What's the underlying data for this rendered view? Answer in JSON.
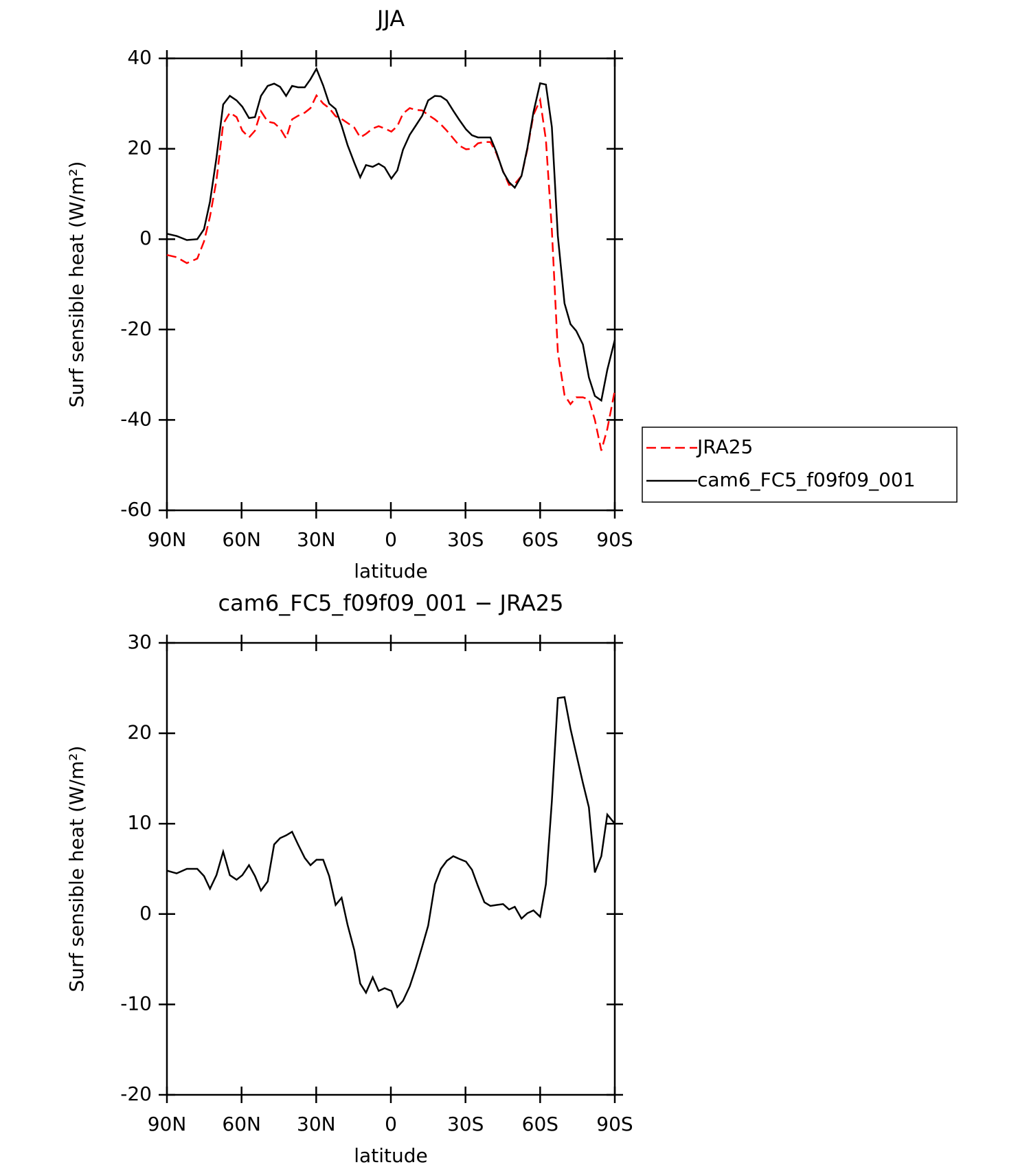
{
  "chart_data": [
    {
      "type": "line",
      "title": "JJA",
      "x_label": "latitude",
      "y_label": "Surf sensible heat (W/m²)",
      "xlim": [
        90,
        -90
      ],
      "ylim": [
        -60,
        40
      ],
      "xticks": [
        {
          "value": 90,
          "label": "90N"
        },
        {
          "value": 60,
          "label": "60N"
        },
        {
          "value": 30,
          "label": "30N"
        },
        0,
        {
          "value": -30,
          "label": "30S"
        },
        {
          "value": -60,
          "label": "60S"
        },
        {
          "value": -90,
          "label": "90S"
        }
      ],
      "yticks": [
        -60,
        -40,
        -20,
        0,
        20,
        40
      ],
      "legend": "right",
      "x": [
        90,
        86.1,
        82,
        77.8,
        75.1,
        72.7,
        70.1,
        67.4,
        64.7,
        62,
        59.7,
        57,
        54.6,
        52.2,
        49.5,
        46.9,
        44.5,
        42.1,
        39.7,
        37.3,
        34.6,
        32.3,
        29.9,
        27.2,
        24.8,
        22.2,
        19.8,
        17.4,
        14.7,
        12.3,
        10,
        7.3,
        4.9,
        2.5,
        -0.2,
        -2.6,
        -4.9,
        -7.6,
        -10,
        -12.6,
        -15,
        -17.7,
        -20.1,
        -22.5,
        -25.1,
        -27.5,
        -30.2,
        -32.6,
        -35,
        -37.6,
        -40,
        -42.4,
        -45.1,
        -47.5,
        -49.8,
        -52.5,
        -54.9,
        -57.3,
        -60,
        -62.3,
        -64.7,
        -67.1,
        -69.8,
        -72.2,
        -74.5,
        -77.2,
        -79.6,
        -82,
        -84.6,
        -87,
        -90
      ],
      "series": [
        {
          "name": "JRA25",
          "color": "#ff0000",
          "dash": true,
          "values": [
            -3.5,
            -4,
            -5.3,
            -4.3,
            -0.5,
            5,
            13,
            25.5,
            28,
            27,
            24,
            22.5,
            24,
            28.3,
            26,
            25.7,
            24.5,
            22.3,
            26.5,
            27.3,
            28,
            29,
            31.8,
            30,
            29,
            27.2,
            26.6,
            25.7,
            24.7,
            22.5,
            23.3,
            24.5,
            25,
            24.5,
            23.8,
            25,
            27.8,
            29,
            28.6,
            28.5,
            27.5,
            26.5,
            25.4,
            24,
            22.3,
            20.7,
            19.9,
            20,
            21.2,
            21.5,
            21.5,
            19,
            15,
            12,
            12.2,
            14,
            20,
            27.5,
            30.8,
            22,
            2,
            -25,
            -34.5,
            -36.5,
            -35,
            -35,
            -35.5,
            -40,
            -46.8,
            -42,
            -33.5
          ]
        },
        {
          "name": "cam6_FC5_f09f09_001",
          "color": "#000000",
          "dash": false,
          "values": [
            1.2,
            0.7,
            -0.2,
            0,
            2.2,
            8.3,
            18,
            29.8,
            31.7,
            30.7,
            29.3,
            26.8,
            27,
            31.7,
            33.9,
            34.4,
            33.7,
            31.7,
            33.9,
            33.6,
            33.6,
            35.4,
            37.7,
            34,
            30,
            28.8,
            25.1,
            20.8,
            16.9,
            13.7,
            16.4,
            16,
            16.7,
            15.9,
            13.4,
            15.2,
            19.8,
            23.1,
            25.1,
            27.3,
            30.7,
            31.7,
            31.6,
            30.7,
            28.4,
            26.4,
            24.3,
            23,
            22.5,
            22.5,
            22.5,
            19.3,
            14.9,
            12.6,
            11.4,
            14,
            20.3,
            28.1,
            34.5,
            34.2,
            24.8,
            0.7,
            -14.2,
            -18.8,
            -20.3,
            -23.3,
            -30.6,
            -34.7,
            -35.7,
            -28.9,
            -22.3
          ]
        }
      ]
    },
    {
      "type": "line",
      "title": "cam6_FC5_f09f09_001 − JRA25",
      "x_label": "latitude",
      "y_label": "Surf sensible heat (W/m²)",
      "xlim": [
        90,
        -90
      ],
      "ylim": [
        -20,
        30
      ],
      "xticks": [
        {
          "value": 90,
          "label": "90N"
        },
        {
          "value": 60,
          "label": "60N"
        },
        {
          "value": 30,
          "label": "30N"
        },
        0,
        {
          "value": -30,
          "label": "30S"
        },
        {
          "value": -60,
          "label": "60S"
        },
        {
          "value": -90,
          "label": "90S"
        }
      ],
      "yticks": [
        -20,
        -10,
        0,
        10,
        20,
        30
      ],
      "x": [
        90,
        86.1,
        82,
        77.8,
        75.1,
        72.7,
        70.1,
        67.4,
        64.7,
        62,
        59.7,
        57,
        54.6,
        52.2,
        49.5,
        46.9,
        44.5,
        42.1,
        39.7,
        37.3,
        34.6,
        32.3,
        29.9,
        27.2,
        24.8,
        22.2,
        19.8,
        17.4,
        14.7,
        12.3,
        10,
        7.3,
        4.9,
        2.5,
        -0.2,
        -2.6,
        -4.9,
        -7.6,
        -10,
        -12.6,
        -15,
        -17.7,
        -20.1,
        -22.5,
        -25.1,
        -27.5,
        -30.2,
        -32.6,
        -35,
        -37.6,
        -40,
        -42.4,
        -45.1,
        -47.5,
        -49.8,
        -52.5,
        -54.9,
        -57.3,
        -60,
        -62.3,
        -64.7,
        -67.1,
        -69.8,
        -72.2,
        -74.5,
        -77.2,
        -79.6,
        -82,
        -84.6,
        -87,
        -90
      ],
      "series": [
        {
          "color": "#000000",
          "dash": false,
          "values": [
            4.8,
            4.5,
            5,
            5,
            4.2,
            2.8,
            4.3,
            6.9,
            4.3,
            3.8,
            4.3,
            5.4,
            4.2,
            2.6,
            3.6,
            7.7,
            8.4,
            8.7,
            9.1,
            7.7,
            6.2,
            5.4,
            6,
            6,
            4.2,
            1,
            1.8,
            -1.2,
            -4,
            -7.7,
            -8.7,
            -7,
            -8.5,
            -8.2,
            -8.5,
            -10.3,
            -9.6,
            -8,
            -6,
            -3.6,
            -1.3,
            3.3,
            5,
            5.9,
            6.4,
            6.1,
            5.8,
            4.9,
            3.1,
            1.3,
            0.9,
            1,
            1.1,
            0.5,
            0.8,
            -0.5,
            0.1,
            0.4,
            -0.3,
            3.3,
            12.5,
            23.9,
            24,
            20.5,
            17.7,
            14.5,
            11.8,
            4.6,
            6.4,
            11,
            10
          ]
        }
      ]
    }
  ]
}
